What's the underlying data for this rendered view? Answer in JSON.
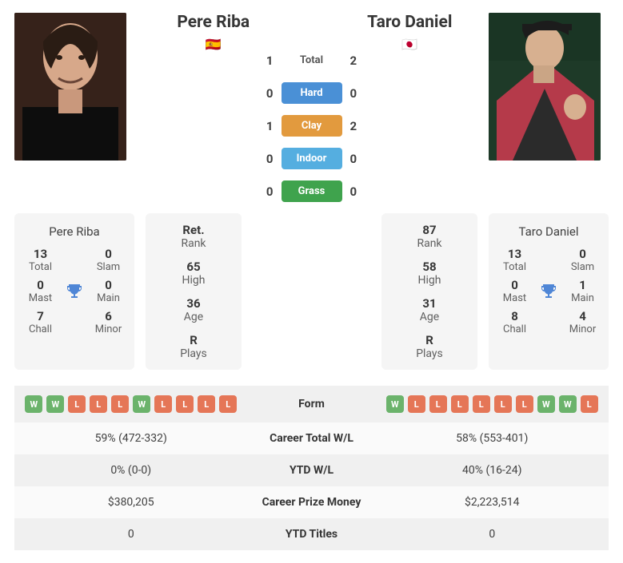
{
  "colors": {
    "card_bg": "#f5f5f5",
    "row_alt1": "#f0f0f0",
    "row_alt2": "#fafafa",
    "win_badge": "#6bb36b",
    "loss_badge": "#e57657",
    "trophy": "#4f86d6",
    "hard": "#4a90d6",
    "clay": "#e29a3e",
    "indoor": "#55aee0",
    "grass": "#3fa34d"
  },
  "player1": {
    "name": "Pere Riba",
    "flag": "🇪🇸",
    "rank": {
      "value": "Ret.",
      "label": "Rank"
    },
    "high": {
      "value": "65",
      "label": "High"
    },
    "age": {
      "value": "36",
      "label": "Age"
    },
    "plays": {
      "value": "R",
      "label": "Plays"
    },
    "titles": {
      "total": {
        "value": "13",
        "label": "Total"
      },
      "slam": {
        "value": "0",
        "label": "Slam"
      },
      "mast": {
        "value": "0",
        "label": "Mast"
      },
      "main": {
        "value": "0",
        "label": "Main"
      },
      "chall": {
        "value": "7",
        "label": "Chall"
      },
      "minor": {
        "value": "6",
        "label": "Minor"
      }
    }
  },
  "player2": {
    "name": "Taro Daniel",
    "flag": "🇯🇵",
    "rank": {
      "value": "87",
      "label": "Rank"
    },
    "high": {
      "value": "58",
      "label": "High"
    },
    "age": {
      "value": "31",
      "label": "Age"
    },
    "plays": {
      "value": "R",
      "label": "Plays"
    },
    "titles": {
      "total": {
        "value": "13",
        "label": "Total"
      },
      "slam": {
        "value": "0",
        "label": "Slam"
      },
      "mast": {
        "value": "0",
        "label": "Mast"
      },
      "main": {
        "value": "1",
        "label": "Main"
      },
      "chall": {
        "value": "8",
        "label": "Chall"
      },
      "minor": {
        "value": "4",
        "label": "Minor"
      }
    }
  },
  "h2h": {
    "total": {
      "p1": "1",
      "label": "Total",
      "p2": "2",
      "pill": false
    },
    "hard": {
      "p1": "0",
      "label": "Hard",
      "p2": "0",
      "pill": true,
      "color": "#4a90d6"
    },
    "clay": {
      "p1": "1",
      "label": "Clay",
      "p2": "2",
      "pill": true,
      "color": "#e29a3e"
    },
    "indoor": {
      "p1": "0",
      "label": "Indoor",
      "p2": "0",
      "pill": true,
      "color": "#55aee0"
    },
    "grass": {
      "p1": "0",
      "label": "Grass",
      "p2": "0",
      "pill": true,
      "color": "#3fa34d"
    }
  },
  "form": {
    "label": "Form",
    "p1": [
      "W",
      "W",
      "L",
      "L",
      "L",
      "W",
      "L",
      "L",
      "L",
      "L"
    ],
    "p2": [
      "W",
      "L",
      "L",
      "L",
      "L",
      "L",
      "L",
      "W",
      "W",
      "L"
    ]
  },
  "cmp": {
    "career_wl": {
      "label": "Career Total W/L",
      "p1": "59% (472-332)",
      "p2": "58% (553-401)"
    },
    "ytd_wl": {
      "label": "YTD W/L",
      "p1": "0% (0-0)",
      "p2": "40% (16-24)"
    },
    "prize": {
      "label": "Career Prize Money",
      "p1": "$380,205",
      "p2": "$2,223,514"
    },
    "ytd_titles": {
      "label": "YTD Titles",
      "p1": "0",
      "p2": "0"
    }
  }
}
